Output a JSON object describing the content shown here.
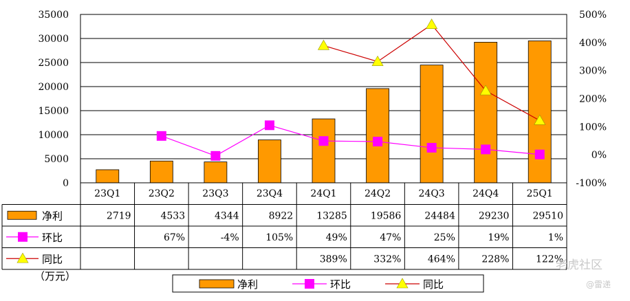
{
  "chart_data": {
    "type": "bar",
    "categories": [
      "23Q1",
      "23Q2",
      "23Q3",
      "23Q4",
      "24Q1",
      "24Q2",
      "24Q3",
      "24Q4",
      "25Q1"
    ],
    "y_left": {
      "range": [
        0,
        35000
      ],
      "ticks": [
        0,
        5000,
        10000,
        15000,
        20000,
        25000,
        30000,
        35000
      ]
    },
    "y_right": {
      "range": [
        -100,
        500
      ],
      "ticks": [
        "-100%",
        "0%",
        "100%",
        "200%",
        "300%",
        "400%",
        "500%"
      ]
    },
    "grid": true,
    "unit_label": "（万元）",
    "legend_position": "bottom",
    "series": [
      {
        "name": "净利",
        "kind": "bar",
        "axis": "left",
        "color": "#ff9900",
        "values": [
          2719,
          4533,
          4344,
          8922,
          13285,
          19586,
          24484,
          29230,
          29510
        ]
      },
      {
        "name": "环比",
        "kind": "line",
        "axis": "right",
        "color": "#ff00ff",
        "values": [
          null,
          67,
          -4,
          105,
          49,
          47,
          25,
          19,
          1
        ],
        "labels": [
          "",
          "67%",
          "-4%",
          "105%",
          "49%",
          "47%",
          "25%",
          "19%",
          "1%"
        ]
      },
      {
        "name": "同比",
        "kind": "line",
        "axis": "right",
        "color": "#cc0000",
        "marker_color": "#ffff00",
        "values": [
          null,
          null,
          null,
          null,
          389,
          332,
          464,
          228,
          122
        ],
        "labels": [
          "",
          "",
          "",
          "",
          "389%",
          "332%",
          "464%",
          "228%",
          "122%"
        ]
      }
    ]
  },
  "watermark": {
    "brand": "老虎社区",
    "author": "@雷递"
  }
}
